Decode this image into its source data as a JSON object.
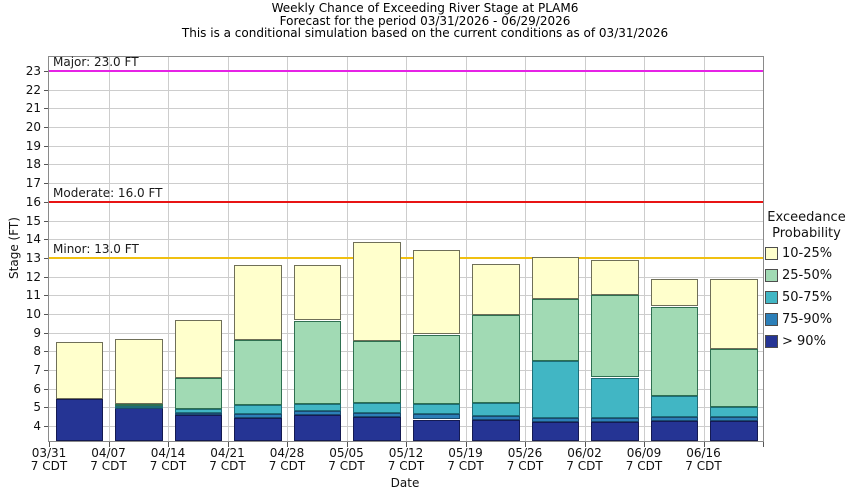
{
  "title": {
    "line1": "Weekly Chance of Exceeding River Stage at PLAM6",
    "line2": "Forecast for the period 03/31/2026 - 06/29/2026",
    "line3": "This is a conditional simulation based on the current conditions as of 03/31/2026"
  },
  "axes": {
    "xlabel": "Date",
    "ylabel": "Stage (FT)"
  },
  "legend": {
    "title_line1": "Exceedance",
    "title_line2": "Probability",
    "items": [
      {
        "label": "10-25%",
        "color": "#ffffcc"
      },
      {
        "label": "25-50%",
        "color": "#a1dab4"
      },
      {
        "label": "50-75%",
        "color": "#41b6c4"
      },
      {
        "label": "75-90%",
        "color": "#2c7fb8"
      },
      {
        "label": "> 90%",
        "color": "#253494"
      }
    ]
  },
  "chart_data": {
    "type": "bar",
    "stacked": true,
    "title": "Weekly Chance of Exceeding River Stage at PLAM6",
    "subtitle": "Forecast for the period 03/31/2026 - 06/29/2026",
    "note": "This is a conditional simulation based on the current conditions as of 03/31/2026",
    "xlabel": "Date",
    "ylabel": "Stage (FT)",
    "ylim": [
      3.2,
      23.75
    ],
    "yticks": [
      4,
      5,
      6,
      7,
      8,
      9,
      10,
      11,
      12,
      13,
      14,
      15,
      16,
      17,
      18,
      19,
      20,
      21,
      22,
      23
    ],
    "grid": true,
    "categories": [
      "03/31",
      "04/07",
      "04/14",
      "04/21",
      "04/28",
      "05/05",
      "05/12",
      "05/19",
      "05/26",
      "06/02",
      "06/09",
      "06/16"
    ],
    "category_sublabel": "7 CDT",
    "baseline": 3.2,
    "series": [
      {
        "name": "> 90%",
        "color": "#253494",
        "border": "#141a52",
        "tops": [
          5.45,
          4.95,
          4.6,
          4.45,
          4.6,
          4.5,
          4.35,
          4.3,
          4.2,
          4.2,
          4.25,
          4.25
        ]
      },
      {
        "name": "75-90%",
        "color": "#2c7fb8",
        "border": "#1a4a6e",
        "tops": [
          5.45,
          5.0,
          4.7,
          4.65,
          4.8,
          4.7,
          4.65,
          4.55,
          4.45,
          4.45,
          4.5,
          4.5
        ]
      },
      {
        "name": "50-75%",
        "color": "#41b6c4",
        "border": "#1e6d77",
        "tops": [
          5.45,
          5.1,
          4.9,
          5.15,
          5.2,
          5.25,
          5.2,
          5.25,
          7.5,
          6.6,
          5.6,
          5.0
        ]
      },
      {
        "name": "25-50%",
        "color": "#a1dab4",
        "border": "#2f7051",
        "tops": [
          5.45,
          5.2,
          6.55,
          8.6,
          9.65,
          8.55,
          8.9,
          9.95,
          10.8,
          11.0,
          10.4,
          8.1
        ]
      },
      {
        "name": "10-25%",
        "color": "#ffffcc",
        "border": "#6f6f58",
        "tops": [
          8.5,
          8.65,
          9.7,
          12.6,
          12.6,
          13.85,
          13.4,
          12.7,
          13.05,
          12.9,
          11.85,
          11.85
        ]
      }
    ],
    "reference_lines": [
      {
        "label": "Major: 23.0 FT",
        "value": 23.0,
        "color": "#e623e6"
      },
      {
        "label": "Moderate: 16.0 FT",
        "value": 16.0,
        "color": "#e81414"
      },
      {
        "label": "Minor: 13.0 FT",
        "value": 13.0,
        "color": "#f0c011"
      }
    ],
    "legend_position": "right"
  }
}
